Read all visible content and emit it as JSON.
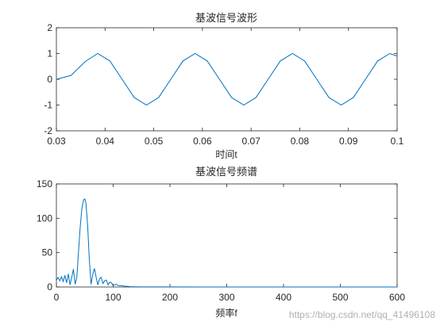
{
  "chart_data": [
    {
      "type": "line",
      "title": "基波信号波形",
      "xlabel": "时间t",
      "ylabel": "",
      "xlim": [
        0.03,
        0.1
      ],
      "ylim": [
        -2,
        2
      ],
      "xticks": [
        0.03,
        0.04,
        0.05,
        0.06,
        0.07,
        0.08,
        0.09,
        0.1
      ],
      "xtick_labels": [
        "0.03",
        "0.04",
        "0.05",
        "0.06",
        "0.07",
        "0.08",
        "0.09",
        "0.1"
      ],
      "yticks": [
        -2,
        -1,
        0,
        1,
        2
      ],
      "ytick_labels": [
        "-2",
        "-1",
        "0",
        "1",
        "2"
      ],
      "grid": false,
      "line_color": "#0072BD",
      "series": [
        {
          "x": [
            0.03,
            0.033,
            0.036,
            0.0385,
            0.041,
            0.0435,
            0.046,
            0.0485,
            0.051,
            0.0535,
            0.056,
            0.0585,
            0.061,
            0.0635,
            0.066,
            0.0685,
            0.071,
            0.0735,
            0.076,
            0.0785,
            0.081,
            0.0835,
            0.086,
            0.0885,
            0.091,
            0.0935,
            0.096,
            0.0985,
            0.1
          ],
          "y": [
            0.0,
            0.15,
            0.7,
            1.0,
            0.71,
            0.0,
            -0.71,
            -1.0,
            -0.71,
            0.0,
            0.71,
            1.0,
            0.71,
            0.0,
            -0.71,
            -1.0,
            -0.71,
            0.0,
            0.71,
            1.0,
            0.71,
            0.0,
            -0.71,
            -1.0,
            -0.71,
            0.0,
            0.71,
            1.0,
            0.9
          ]
        }
      ]
    },
    {
      "type": "line",
      "title": "基波信号频谱",
      "xlabel": "频率f",
      "ylabel": "",
      "xlim": [
        0,
        600
      ],
      "ylim": [
        0,
        150
      ],
      "xticks": [
        0,
        100,
        200,
        300,
        400,
        500,
        600
      ],
      "xtick_labels": [
        "0",
        "100",
        "200",
        "300",
        "400",
        "500",
        "600"
      ],
      "yticks": [
        0,
        50,
        100,
        150
      ],
      "ytick_labels": [
        "0",
        "50",
        "100",
        "150"
      ],
      "grid": false,
      "line_color": "#0072BD",
      "series": [
        {
          "x": [
            0,
            3,
            6,
            9,
            12,
            15,
            18,
            21,
            24,
            27,
            30,
            33,
            36,
            39,
            42,
            45,
            48,
            50,
            52,
            55,
            58,
            61,
            64,
            67,
            70,
            73,
            76,
            79,
            82,
            85,
            88,
            91,
            94,
            97,
            100,
            105,
            110,
            115,
            120,
            125,
            130,
            150,
            200,
            300,
            400,
            500,
            600
          ],
          "y": [
            10,
            14,
            9,
            15,
            8,
            17,
            6,
            19,
            3,
            14,
            26,
            4,
            14,
            52,
            88,
            115,
            127,
            128,
            122,
            90,
            40,
            4,
            18,
            27,
            14,
            3,
            12,
            14,
            5,
            9,
            10,
            3,
            7,
            6,
            2,
            4,
            2,
            2,
            1,
            1,
            0.5,
            0.2,
            0.1,
            0.05,
            0.05,
            0.05,
            0.05
          ]
        }
      ]
    }
  ],
  "watermark": "https://blog.csdn.net/qq_41496108"
}
